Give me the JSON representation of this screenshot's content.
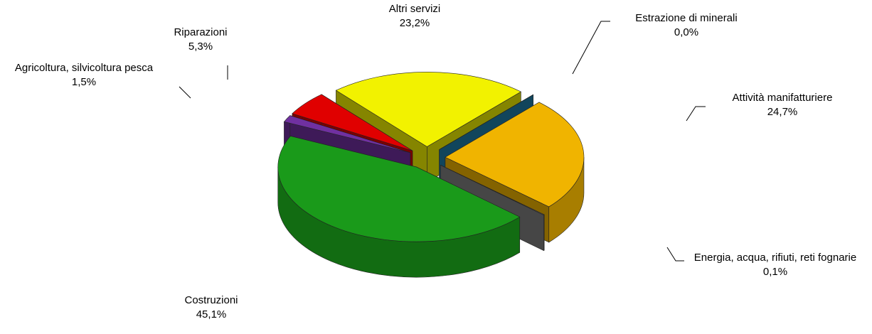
{
  "chart_data": {
    "type": "pie",
    "three_d": true,
    "exploded": true,
    "categories": [
      "Altri servizi",
      "Estrazione di minerali",
      "Attività manifatturiere",
      "Energia, acqua, rifiuti, reti fognarie",
      "Costruzioni",
      "Agricoltura, silvicoltura pesca",
      "Riparazioni"
    ],
    "values": [
      23.2,
      0.0,
      24.7,
      0.1,
      45.1,
      1.5,
      5.3
    ],
    "value_labels": [
      "23,2%",
      "0,0%",
      "24,7%",
      "0,1%",
      "45,1%",
      "1,5%",
      "5,3%"
    ],
    "colors": [
      "#f2f200",
      "#1f7ea8",
      "#f0b400",
      "#7f7f7f",
      "#1a9a1a",
      "#7030a0",
      "#e00000"
    ]
  }
}
